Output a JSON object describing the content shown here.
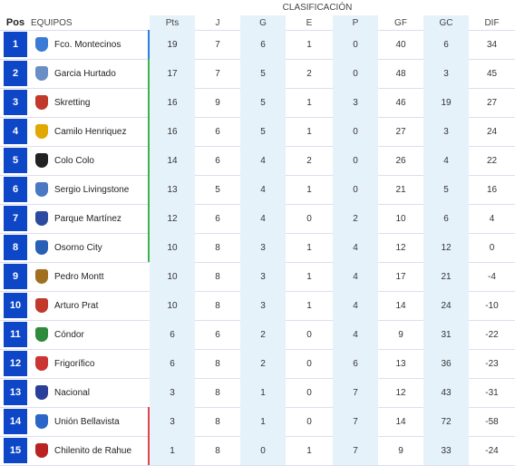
{
  "header": {
    "title": "CLASIFICACIÓN",
    "columns": [
      "Pos",
      "EQUIPOS",
      "Pts",
      "J",
      "G",
      "E",
      "P",
      "GF",
      "GC",
      "DIF"
    ]
  },
  "table": {
    "rows": [
      [
        1,
        "Fco. Montecinos",
        19,
        7,
        6,
        1,
        0,
        40,
        6,
        34
      ],
      [
        2,
        "Garcia Hurtado",
        17,
        7,
        5,
        2,
        0,
        48,
        3,
        45
      ],
      [
        3,
        "Skretting",
        16,
        9,
        5,
        1,
        3,
        46,
        19,
        27
      ],
      [
        4,
        "Camilo Henriquez",
        16,
        6,
        5,
        1,
        0,
        27,
        3,
        24
      ],
      [
        5,
        "Colo Colo",
        14,
        6,
        4,
        2,
        0,
        26,
        4,
        22
      ],
      [
        6,
        "Sergio Livingstone",
        13,
        5,
        4,
        1,
        0,
        21,
        5,
        16
      ],
      [
        7,
        "Parque Martínez",
        12,
        6,
        4,
        0,
        2,
        10,
        6,
        4
      ],
      [
        8,
        "Osorno City",
        10,
        8,
        3,
        1,
        4,
        12,
        12,
        0
      ],
      [
        9,
        "Pedro Montt",
        10,
        8,
        3,
        1,
        4,
        17,
        21,
        -4
      ],
      [
        10,
        "Arturo Prat",
        10,
        8,
        3,
        1,
        4,
        14,
        24,
        -10
      ],
      [
        11,
        "Cóndor",
        6,
        6,
        2,
        0,
        4,
        9,
        31,
        -22
      ],
      [
        12,
        "Frigorífico",
        6,
        8,
        2,
        0,
        6,
        13,
        36,
        -23
      ],
      [
        13,
        "Nacional",
        3,
        8,
        1,
        0,
        7,
        12,
        43,
        -31
      ],
      [
        14,
        "Unión Bellavista",
        3,
        8,
        1,
        0,
        7,
        14,
        72,
        -58
      ],
      [
        15,
        "Chilenito de Rahue",
        1,
        8,
        0,
        1,
        7,
        9,
        33,
        -24
      ]
    ]
  }
}
